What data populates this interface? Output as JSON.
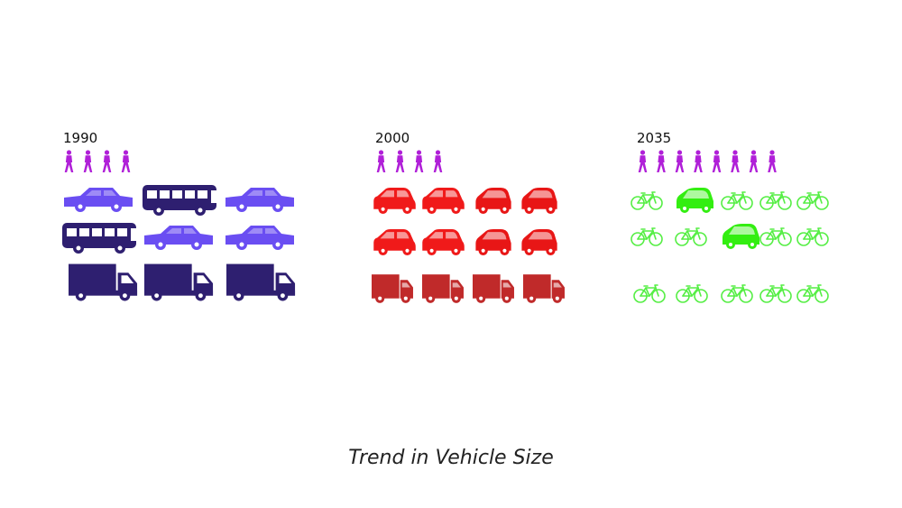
{
  "caption": "Trend in Vehicle Size",
  "colors": {
    "person": "#b020d8",
    "car_1990": "#6a4ef2",
    "bus_1990": "#2e1f70",
    "truck_1990": "#2e1f70",
    "smallcar_2000": "#f01a1a",
    "microcar_2000": "#e81616",
    "van_2000": "#c02a2a",
    "bike_2035": "#55ee44",
    "pod_2035": "#33ee11"
  },
  "panels": [
    {
      "year": "1990",
      "people": 4,
      "rows": [
        [
          "car",
          "bus",
          "car"
        ],
        [
          "bus",
          "car",
          "car"
        ],
        [
          "truck",
          "truck",
          "truck"
        ]
      ]
    },
    {
      "year": "2000",
      "people": 4,
      "rows": [
        [
          "smallcar",
          "smallcar",
          "microcar",
          "microcar"
        ],
        [
          "smallcar",
          "smallcar",
          "microcar",
          "microcar"
        ],
        [
          "van",
          "van",
          "van",
          "van"
        ]
      ]
    },
    {
      "year": "2035",
      "people": 8,
      "rows": [
        [
          "bike",
          "pod",
          "bike",
          "bike",
          "bike"
        ],
        [
          "bike",
          "bike",
          "pod",
          "bike",
          "bike"
        ],
        [
          "bike",
          "bike",
          "bike",
          "bike",
          "bike"
        ]
      ]
    }
  ]
}
